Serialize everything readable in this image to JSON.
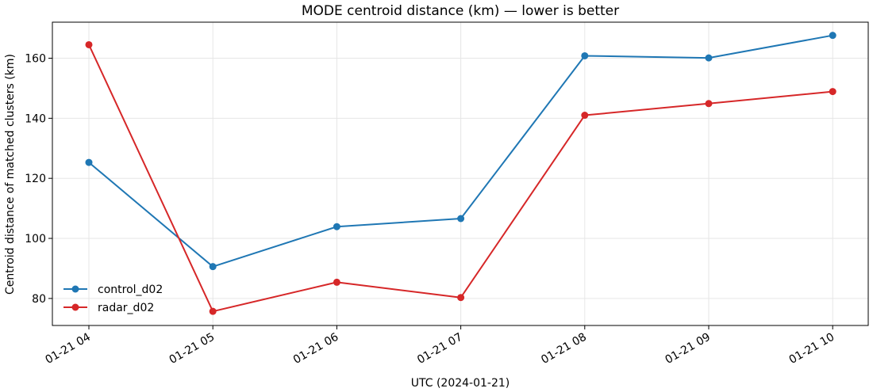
{
  "chart_data": {
    "type": "line",
    "title": "MODE centroid distance (km) — lower is better",
    "xlabel": "UTC (2024-01-21)",
    "ylabel": "Centroid distance of matched clusters (km)",
    "categories": [
      "01-21 04",
      "01-21 05",
      "01-21 06",
      "01-21 07",
      "01-21 08",
      "01-21 09",
      "01-21 10"
    ],
    "ylim": [
      71,
      172
    ],
    "yticks": [
      80,
      100,
      120,
      140,
      160
    ],
    "grid": true,
    "legend_position": "lower-left",
    "series": [
      {
        "name": "control_d02",
        "color": "#1f77b4",
        "marker": "circle",
        "values": [
          125.3,
          90.6,
          103.9,
          106.6,
          160.8,
          160.1,
          167.6
        ]
      },
      {
        "name": "radar_d02",
        "color": "#d62728",
        "marker": "circle",
        "values": [
          164.5,
          75.7,
          85.4,
          80.3,
          141.0,
          144.9,
          148.9
        ]
      }
    ]
  }
}
